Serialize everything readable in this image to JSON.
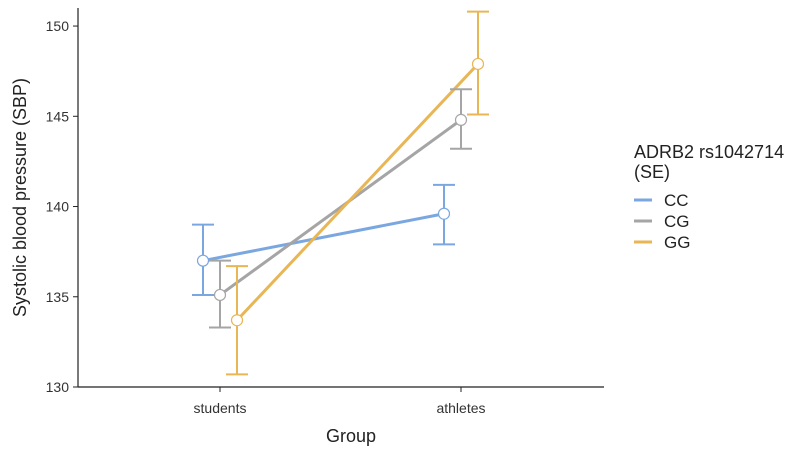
{
  "chart_data": {
    "type": "line",
    "title": "",
    "xlabel": "Group",
    "ylabel": "Systolic blood pressure (SBP)",
    "categories": [
      "students",
      "athletes"
    ],
    "ylim": [
      130,
      151
    ],
    "yticks": [
      130,
      135,
      140,
      145,
      150
    ],
    "grid": false,
    "legend": {
      "title_lines": [
        "ADRB2 rs1042714",
        "(SE)"
      ],
      "position": "right"
    },
    "series": [
      {
        "name": "CC",
        "color": "#7BA7E1",
        "values": [
          137.0,
          139.6
        ],
        "lower": [
          135.1,
          137.9
        ],
        "upper": [
          139.0,
          141.2
        ]
      },
      {
        "name": "CG",
        "color": "#A5A5A5",
        "values": [
          135.1,
          144.8
        ],
        "lower": [
          133.3,
          143.2
        ],
        "upper": [
          137.0,
          146.5
        ]
      },
      {
        "name": "GG",
        "color": "#E8B655",
        "values": [
          133.7,
          147.9
        ],
        "lower": [
          130.7,
          145.1
        ],
        "upper": [
          136.7,
          150.8
        ]
      }
    ]
  }
}
